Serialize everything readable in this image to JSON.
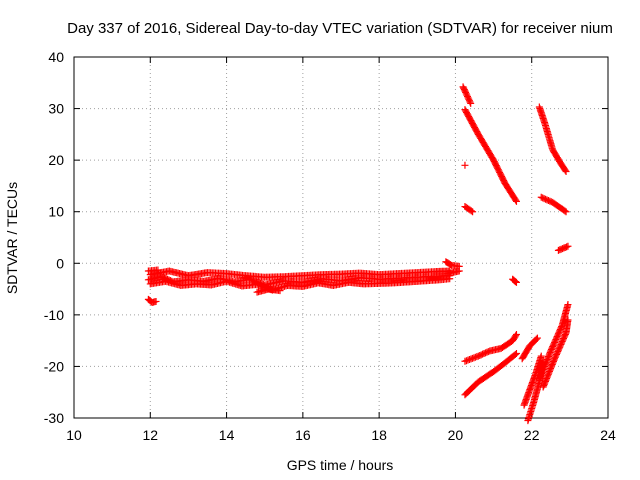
{
  "chart_data": {
    "type": "scatter",
    "title": "Day 337 of 2016, Sidereal Day-to-day VTEC variation (SDTVAR) for receiver nium",
    "xlabel": "GPS time / hours",
    "ylabel": "SDTVAR / TECUs",
    "xlim": [
      10,
      24
    ],
    "ylim": [
      -30,
      40
    ],
    "x_ticks": [
      "10",
      "12",
      "14",
      "16",
      "18",
      "20",
      "22",
      "24"
    ],
    "y_ticks": [
      "-30",
      "-20",
      "-10",
      "0",
      "10",
      "20",
      "30",
      "40"
    ],
    "grid": true,
    "legend": "none",
    "marker": "plus",
    "color": "#ff0000",
    "series": [
      {
        "segments": [
          {
            "x": [
              11.95,
              12.2
            ],
            "y": [
              -1.5,
              -1.3
            ]
          },
          {
            "x": [
              11.95,
              12.3,
              12.6,
              13.0,
              13.4,
              13.8,
              14.2,
              14.6,
              15.0,
              15.5,
              16.0,
              16.5,
              17.0,
              17.5,
              18.0,
              18.5,
              19.0,
              19.5,
              19.85
            ],
            "y": [
              -3.2,
              -2.6,
              -3.6,
              -3.2,
              -3.5,
              -2.9,
              -3.6,
              -3.1,
              -4.2,
              -3.4,
              -3.7,
              -3.0,
              -3.4,
              -2.8,
              -3.1,
              -2.9,
              -2.7,
              -2.5,
              -2.4
            ]
          },
          {
            "x": [
              12.0,
              12.4,
              12.8,
              13.2,
              13.6,
              14.0,
              14.4,
              14.8,
              15.2,
              15.6,
              16.0,
              16.4,
              16.8,
              17.2,
              17.6,
              18.0,
              18.4,
              18.8,
              19.2,
              19.6,
              19.85
            ],
            "y": [
              -4.0,
              -3.5,
              -4.3,
              -4.0,
              -4.2,
              -3.5,
              -4.4,
              -4.1,
              -5.2,
              -4.3,
              -4.5,
              -3.8,
              -4.3,
              -3.7,
              -4.0,
              -3.9,
              -3.8,
              -3.6,
              -3.4,
              -3.2,
              -3.0
            ]
          },
          {
            "x": [
              12.0,
              12.5,
              13.0,
              13.5,
              14.0,
              14.5,
              15.0,
              15.5,
              16.0,
              16.5,
              17.0,
              17.5,
              18.0,
              18.5,
              19.0,
              19.5,
              19.85
            ],
            "y": [
              -2.2,
              -1.5,
              -2.4,
              -1.8,
              -2.0,
              -2.4,
              -2.7,
              -2.6,
              -2.4,
              -2.2,
              -2.1,
              -1.9,
              -2.2,
              -2.0,
              -1.8,
              -1.6,
              -1.5
            ]
          },
          {
            "x": [
              14.8,
              15.1,
              15.4
            ],
            "y": [
              -5.6,
              -5.0,
              -5.3
            ]
          },
          {
            "x": [
              19.75,
              19.9,
              20.1
            ],
            "y": [
              0.3,
              -0.4,
              -0.6
            ]
          },
          {
            "x": [
              19.8,
              20.1
            ],
            "y": [
              -2.0,
              -1.5
            ]
          }
        ]
      },
      {
        "segments": [
          {
            "x": [
              11.95,
              12.05,
              12.15
            ],
            "y": [
              -7.0,
              -7.6,
              -7.4
            ]
          }
        ]
      },
      {
        "segments": [
          {
            "x": [
              20.2,
              20.4
            ],
            "y": [
              34.2,
              31.0
            ]
          },
          {
            "x": [
              20.25,
              20.6,
              21.0,
              21.3,
              21.6
            ],
            "y": [
              29.8,
              25.0,
              20.0,
              15.5,
              12.0
            ]
          },
          {
            "x": [
              20.25,
              20.45
            ],
            "y": [
              11.0,
              10.0
            ]
          },
          {
            "x": [
              20.25
            ],
            "y": [
              19.0
            ]
          },
          {
            "x": [
              21.5,
              21.6
            ],
            "y": [
              -3.1,
              -3.7
            ]
          }
        ]
      },
      {
        "segments": [
          {
            "x": [
              20.25,
              20.6,
              20.9,
              21.2,
              21.5,
              21.6
            ],
            "y": [
              -19.0,
              -18.0,
              -17.0,
              -16.5,
              -15.0,
              -13.8
            ]
          },
          {
            "x": [
              20.25,
              20.6,
              21.0,
              21.3,
              21.6
            ],
            "y": [
              -25.5,
              -23.0,
              -21.0,
              -19.3,
              -17.5
            ]
          }
        ]
      },
      {
        "segments": [
          {
            "x": [
              21.75,
              21.95,
              22.15
            ],
            "y": [
              -18.5,
              -16.0,
              -14.5
            ]
          },
          {
            "x": [
              21.8,
              21.95,
              22.1,
              22.25
            ],
            "y": [
              -27.5,
              -24.5,
              -21.5,
              -18.0
            ]
          },
          {
            "x": [
              21.9,
              22.05,
              22.2,
              22.3
            ],
            "y": [
              -30.5,
              -27.0,
              -23.0,
              -19.0
            ]
          },
          {
            "x": [
              22.2,
              22.5,
              22.8,
              22.95
            ],
            "y": [
              -22.5,
              -17.0,
              -12.0,
              -8.0
            ]
          },
          {
            "x": [
              22.3,
              22.6,
              22.9,
              22.95
            ],
            "y": [
              -24.0,
              -18.5,
              -13.5,
              -11.0
            ]
          }
        ]
      },
      {
        "segments": [
          {
            "x": [
              22.2,
              22.35,
              22.55,
              22.75,
              22.9
            ],
            "y": [
              30.3,
              27.0,
              22.0,
              19.5,
              17.8
            ]
          },
          {
            "x": [
              22.25,
              22.55,
              22.9
            ],
            "y": [
              12.8,
              11.8,
              10.0
            ]
          },
          {
            "x": [
              22.7,
              22.95
            ],
            "y": [
              2.5,
              3.3
            ]
          }
        ]
      }
    ]
  }
}
